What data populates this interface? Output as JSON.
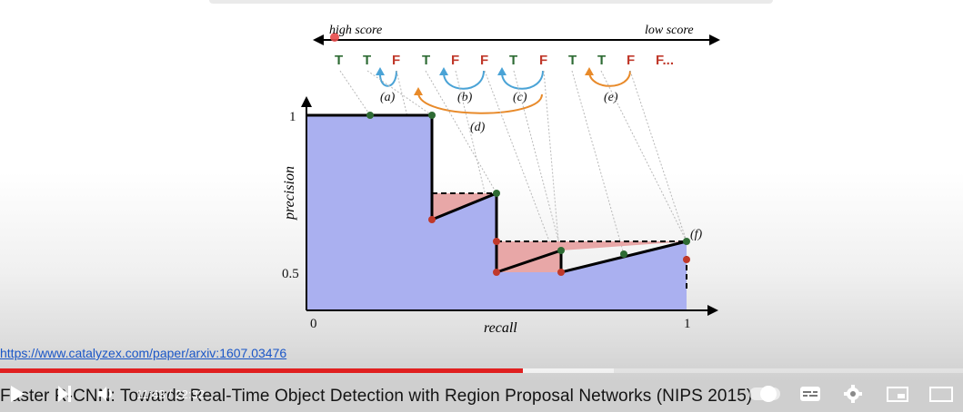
{
  "figure": {
    "score_labels": {
      "high": "high score",
      "low": "low score"
    },
    "sequence": [
      "T",
      "T",
      "F",
      "T",
      "F",
      "F",
      "T",
      "F",
      "T",
      "T",
      "F",
      "F..."
    ],
    "annotation_labels": [
      "(a)",
      "(b)",
      "(c)",
      "(d)",
      "(e)",
      "(f)"
    ],
    "axis": {
      "xlabel": "recall",
      "ylabel": "precision",
      "x_ticks": [
        "0",
        "1"
      ],
      "y_ticks": [
        "1",
        "0.5"
      ]
    }
  },
  "colors": {
    "true_positive": "#2e6b34",
    "false_positive": "#c0392b",
    "area_fill": "#aab0f0",
    "gap_fill": "#e8a7a7",
    "arrow_blue": "#4aa3d6",
    "arrow_orange": "#e88a2a"
  },
  "url": "https://www.catalyzex.com/paper/arxiv:1607.03476",
  "player": {
    "time": "11:43 / 22:32",
    "title": "Faster R-CNN: Towards Real-Time Object Detection with Region Proposal Networks (NIPS 2015)",
    "progress_fraction": 0.52,
    "buffered_fraction": 0.64
  },
  "icons": [
    "play-icon",
    "next-icon",
    "volume-icon",
    "autoplay-toggle",
    "subtitles-icon",
    "settings-icon",
    "miniplayer-icon",
    "theater-icon"
  ]
}
